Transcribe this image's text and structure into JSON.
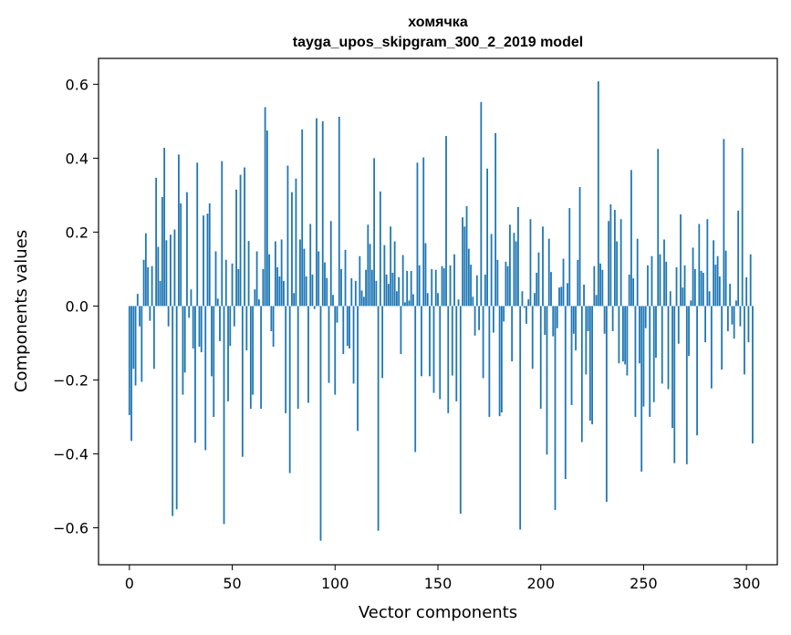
{
  "chart_data": {
    "type": "bar",
    "title": "хомячка",
    "subtitle": "tayga_upos_skipgram_300_2_2019 model",
    "xlabel": "Vector components",
    "ylabel": "Components values",
    "xlim": [
      -15,
      315
    ],
    "ylim": [
      -0.7,
      0.67
    ],
    "xticks": [
      0,
      50,
      100,
      150,
      200,
      250,
      300
    ],
    "xtick_labels": [
      "0",
      "50",
      "100",
      "150",
      "200",
      "250",
      "300"
    ],
    "yticks": [
      -0.6,
      -0.4,
      -0.2,
      0.0,
      0.2,
      0.4,
      0.6
    ],
    "ytick_labels": [
      "−0.6",
      "−0.4",
      "−0.2",
      "0.0",
      "0.2",
      "0.4",
      "0.6"
    ],
    "grid": false,
    "bar_color": "#1f77b4",
    "values": [
      -0.295,
      -0.365,
      -0.17,
      -0.215,
      0.033,
      -0.055,
      -0.205,
      0.125,
      0.197,
      0.105,
      -0.04,
      0.108,
      -0.17,
      0.347,
      0.16,
      0.068,
      0.295,
      0.428,
      0.178,
      -0.055,
      0.193,
      -0.568,
      0.207,
      -0.55,
      0.41,
      0.278,
      -0.24,
      -0.18,
      0.308,
      -0.032,
      0.045,
      -0.115,
      -0.37,
      0.388,
      -0.11,
      -0.125,
      0.245,
      -0.39,
      0.25,
      0.278,
      -0.19,
      -0.3,
      0.148,
      0.02,
      -0.095,
      0.392,
      -0.59,
      0.125,
      -0.258,
      -0.108,
      0.115,
      -0.055,
      0.315,
      0.1,
      0.355,
      -0.408,
      0.375,
      -0.12,
      0.176,
      -0.278,
      -0.24,
      0.045,
      0.148,
      0.018,
      -0.278,
      0.1,
      0.538,
      0.475,
      0.14,
      -0.068,
      -0.11,
      0.175,
      0.105,
      0.08,
      0.18,
      0.068,
      -0.29,
      0.38,
      -0.452,
      0.308,
      0.035,
      0.345,
      -0.278,
      0.18,
      0.478,
      0.155,
      0.08,
      -0.262,
      0.222,
      0.085,
      -0.008,
      0.508,
      0.148,
      -0.635,
      0.5,
      0.118,
      0.076,
      -0.208,
      0.23,
      0.03,
      -0.24,
      -0.045,
      0.512,
      0.1,
      -0.13,
      0.152,
      -0.108,
      -0.115,
      0.075,
      -0.21,
      0.068,
      -0.338,
      0.135,
      0.042,
      0.025,
      0.098,
      0.22,
      0.168,
      0.098,
      0.4,
      0.068,
      -0.608,
      0.31,
      -0.195,
      0.165,
      0.085,
      0.06,
      0.215,
      0.09,
      0.175,
      0.04,
      0.078,
      -0.13,
      0.138,
      0.01,
      0.095,
      0.015,
      0.095,
      0.032,
      -0.395,
      0.388,
      0.11,
      -0.19,
      0.402,
      0.17,
      0.035,
      -0.19,
      0.1,
      -0.235,
      0.098,
      0.035,
      -0.252,
      0.108,
      0.102,
      0.46,
      -0.29,
      0.11,
      -0.188,
      0.14,
      -0.258,
      0.018,
      -0.562,
      0.24,
      0.215,
      0.27,
      0.155,
      0.112,
      0.025,
      -0.08,
      0.083,
      -0.065,
      0.552,
      -0.195,
      0.085,
      0.372,
      -0.3,
      0.195,
      -0.072,
      0.468,
      0.125,
      -0.298,
      -0.288,
      -0.042,
      0.12,
      0.108,
      0.22,
      -0.15,
      0.198,
      0.175,
      0.268,
      -0.605,
      0.04,
      -0.005,
      -0.048,
      0.018,
      0.235,
      -0.17,
      0.035,
      0.09,
      0.145,
      -0.278,
      0.215,
      -0.078,
      -0.402,
      0.182,
      0.092,
      -0.082,
      -0.552,
      -0.06,
      0.05,
      0.052,
      0.128,
      -0.468,
      0.062,
      0.265,
      -0.268,
      -0.075,
      -0.12,
      0.125,
      0.322,
      -0.368,
      0.058,
      -0.185,
      -0.068,
      -0.31,
      -0.32,
      0.108,
      0.03,
      0.608,
      0.115,
      0.098,
      -0.075,
      -0.53,
      0.23,
      0.275,
      -0.068,
      0.26,
      0.175,
      -0.155,
      0.235,
      -0.15,
      -0.158,
      -0.188,
      0.085,
      0.368,
      0.075,
      -0.3,
      0.182,
      -0.155,
      -0.448,
      -0.272,
      -0.06,
      0.11,
      -0.3,
      0.135,
      -0.26,
      -0.14,
      0.425,
      0.14,
      -0.21,
      0.18,
      0.12,
      -0.225,
      0.04,
      -0.33,
      -0.425,
      0.105,
      -0.102,
      0.248,
      0.05,
      0.11,
      -0.428,
      -0.135,
      0.015,
      0.158,
      0.1,
      -0.35,
      0.222,
      0.095,
      0.09,
      -0.098,
      0.235,
      0.04,
      -0.223,
      0.178,
      0.112,
      0.135,
      0.08,
      -0.172,
      0.452,
      0.15,
      -0.068,
      0.06,
      -0.05,
      -0.088,
      0.015,
      0.258,
      -0.055,
      0.428,
      -0.185,
      0.078,
      -0.098,
      0.14,
      -0.372
    ]
  }
}
